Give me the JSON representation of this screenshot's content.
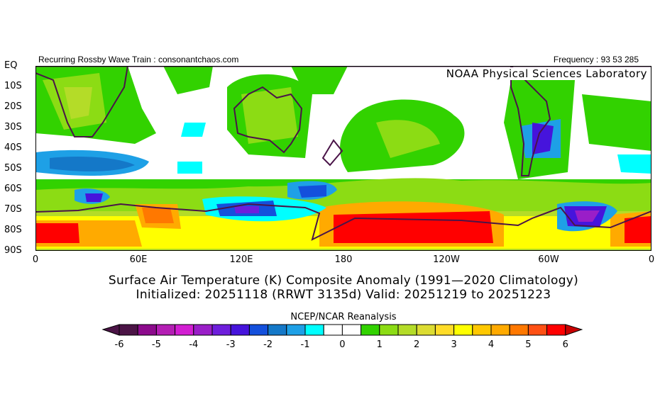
{
  "header": {
    "left_text": "Recurring Rossby Wave Train : consonantchaos.com",
    "right_text": "Frequency : 93 53 285",
    "lab": "NOAA Physical Sciences Laboratory"
  },
  "map": {
    "lat_labels": [
      "EQ",
      "10S",
      "20S",
      "30S",
      "40S",
      "50S",
      "60S",
      "70S",
      "80S",
      "90S"
    ],
    "lon_labels": [
      "0",
      "60E",
      "120E",
      "180",
      "120W",
      "60W",
      "0"
    ],
    "title_line1": "Surface Air Temperature (K) Composite Anomaly (1991—2020 Climatology)",
    "title_line2": "Initialized: 20251118 (RRWT 3135d) Valid: 20251219 to 20251223",
    "coastline_color": "#4a1448"
  },
  "colorbar": {
    "source": "NCEP/NCAR Reanalysis",
    "labels": [
      "-6",
      "-5",
      "-4",
      "-3",
      "-2",
      "-1",
      "0",
      "1",
      "2",
      "3",
      "4",
      "5",
      "6"
    ],
    "colors": [
      "#4b1446",
      "#8c0a8c",
      "#b41eb4",
      "#d21ed2",
      "#9a1ec8",
      "#6e1edc",
      "#4614dc",
      "#1450dc",
      "#1478c8",
      "#1ea0e6",
      "#00ffff",
      "#ffffff",
      "#ffffff",
      "#32d200",
      "#8cdc14",
      "#b4dc28",
      "#dcdc32",
      "#ffdc28",
      "#ffff00",
      "#ffc800",
      "#ffaa00",
      "#ff7800",
      "#ff5014",
      "#ff0000"
    ],
    "under_color": "#4b1446",
    "over_color": "#c80000"
  }
}
